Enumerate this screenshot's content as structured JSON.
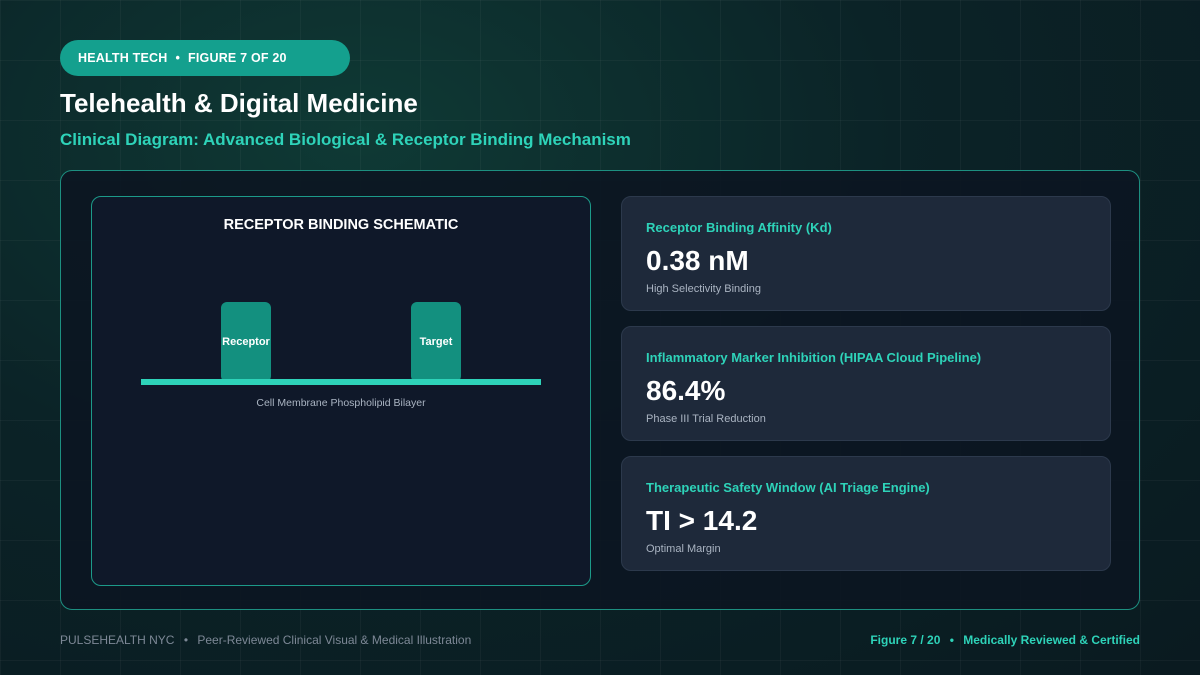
{
  "header": {
    "pill_category": "HEALTH TECH",
    "pill_separator": "•",
    "pill_figure": "FIGURE 7 OF 20",
    "title": "Telehealth & Digital Medicine",
    "subtitle": "Clinical Diagram: Advanced Biological & Receptor Binding Mechanism"
  },
  "schematic": {
    "title": "RECEPTOR BINDING SCHEMATIC",
    "receptor_label": "Receptor",
    "target_label": "Target",
    "membrane_label": "Cell Membrane Phospholipid Bilayer"
  },
  "metrics": [
    {
      "label": "Receptor Binding Affinity (Kd)",
      "value": "0.38 nM",
      "note": "High Selectivity Binding"
    },
    {
      "label": "Inflammatory Marker Inhibition (HIPAA Cloud Pipeline)",
      "value": "86.4%",
      "note": "Phase III Trial Reduction"
    },
    {
      "label": "Therapeutic Safety Window (AI Triage Engine)",
      "value": "TI > 14.2",
      "note": "Optimal Margin"
    }
  ],
  "footer": {
    "brand": "PULSEHEALTH NYC",
    "separator": "•",
    "tagline": "Peer-Reviewed Clinical Visual & Medical Illustration",
    "figure": "Figure 7 / 20",
    "certification": "Medically Reviewed & Certified"
  },
  "colors": {
    "accent": "#2ed3b9",
    "pill": "#14a08e",
    "block": "#13907f",
    "card": "#1e293a"
  }
}
